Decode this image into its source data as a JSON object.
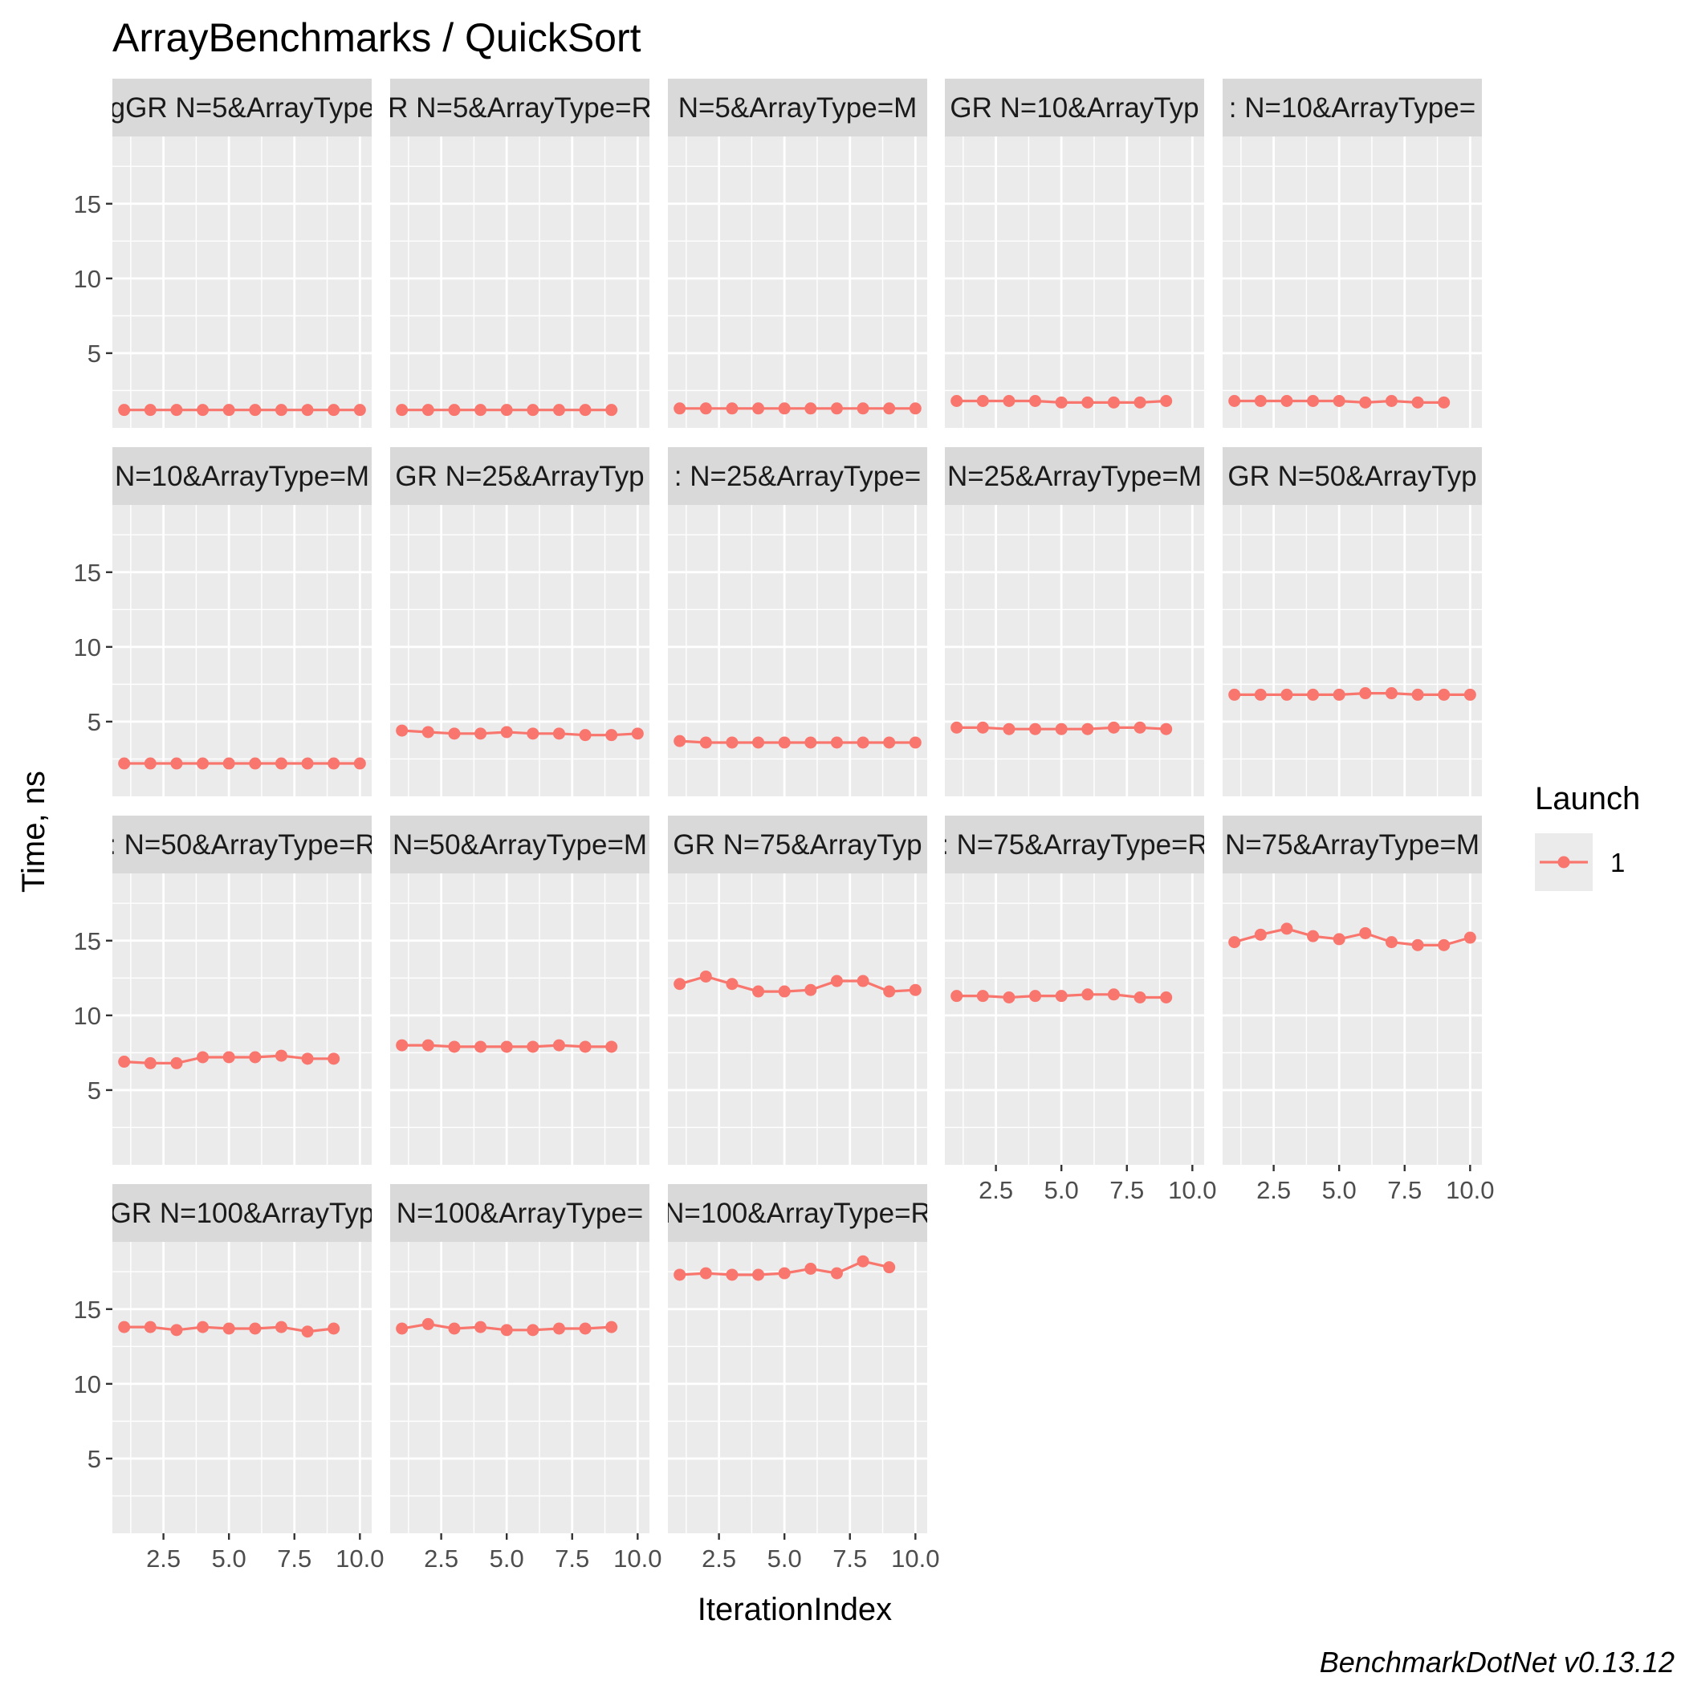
{
  "title": "ArrayBenchmarks / QuickSort",
  "caption": "BenchmarkDotNet v0.13.12",
  "legend": {
    "title": "Launch",
    "entries": [
      "1"
    ]
  },
  "colors": {
    "series": "#F8766D",
    "panel_bg": "#EBEBEB",
    "strip_bg": "#D9D9D9",
    "grid": "#FFFFFF"
  },
  "chart_data": {
    "type": "line",
    "title": "ArrayBenchmarks / QuickSort",
    "xlabel": "IterationIndex",
    "ylabel": "Time, ns",
    "xlim": [
      0.55,
      10.45
    ],
    "ylim": [
      0,
      19.5
    ],
    "x_ticks": [
      2.5,
      5.0,
      7.5,
      10.0
    ],
    "x_tick_labels": [
      "2.5",
      "5.0",
      "7.5",
      "10.0"
    ],
    "y_ticks": [
      5,
      10,
      15
    ],
    "y_tick_labels": [
      "5",
      "10",
      "15"
    ],
    "grid": true,
    "legend_position": "right",
    "series_name": "1",
    "facets": [
      {
        "strip": "GR N=5&ArrayType=",
        "shown_strip": "gGR N=5&ArrayType",
        "x": [
          1,
          2,
          3,
          4,
          5,
          6,
          7,
          8,
          9,
          10
        ],
        "y": [
          1.2,
          1.2,
          1.2,
          1.2,
          1.2,
          1.2,
          1.2,
          1.2,
          1.2,
          1.2
        ]
      },
      {
        "strip": "R N=5&ArrayType=R",
        "shown_strip": "R N=5&ArrayType=R",
        "x": [
          1,
          2,
          3,
          4,
          5,
          6,
          7,
          8,
          9
        ],
        "y": [
          1.2,
          1.2,
          1.2,
          1.2,
          1.2,
          1.2,
          1.2,
          1.2,
          1.2
        ]
      },
      {
        "strip": "N=5&ArrayType=M",
        "shown_strip": "N=5&ArrayType=M",
        "x": [
          1,
          2,
          3,
          4,
          5,
          6,
          7,
          8,
          9,
          10
        ],
        "y": [
          1.3,
          1.3,
          1.3,
          1.3,
          1.3,
          1.3,
          1.3,
          1.3,
          1.3,
          1.3
        ]
      },
      {
        "strip": "GR N=10&ArrayTyp",
        "shown_strip": "GR N=10&ArrayTyp",
        "x": [
          1,
          2,
          3,
          4,
          5,
          6,
          7,
          8,
          9
        ],
        "y": [
          1.8,
          1.8,
          1.8,
          1.8,
          1.7,
          1.7,
          1.7,
          1.7,
          1.8
        ]
      },
      {
        "strip": "N=10&ArrayType=",
        "shown_strip": ": N=10&ArrayType=",
        "x": [
          1,
          2,
          3,
          4,
          5,
          6,
          7,
          8,
          9
        ],
        "y": [
          1.8,
          1.8,
          1.8,
          1.8,
          1.8,
          1.7,
          1.8,
          1.7,
          1.7
        ]
      },
      {
        "strip": "N=10&ArrayType=M",
        "shown_strip": "N=10&ArrayType=M",
        "x": [
          1,
          2,
          3,
          4,
          5,
          6,
          7,
          8,
          9,
          10
        ],
        "y": [
          2.2,
          2.2,
          2.2,
          2.2,
          2.2,
          2.2,
          2.2,
          2.2,
          2.2,
          2.2
        ]
      },
      {
        "strip": "GR N=25&ArrayTyp",
        "shown_strip": "GR N=25&ArrayTyp",
        "x": [
          1,
          2,
          3,
          4,
          5,
          6,
          7,
          8,
          9,
          10
        ],
        "y": [
          4.4,
          4.3,
          4.2,
          4.2,
          4.3,
          4.2,
          4.2,
          4.1,
          4.1,
          4.2
        ]
      },
      {
        "strip": "N=25&ArrayType=",
        "shown_strip": ": N=25&ArrayType=",
        "x": [
          1,
          2,
          3,
          4,
          5,
          6,
          7,
          8,
          9,
          10
        ],
        "y": [
          3.7,
          3.6,
          3.6,
          3.6,
          3.6,
          3.6,
          3.6,
          3.6,
          3.6,
          3.6
        ]
      },
      {
        "strip": "N=25&ArrayType=M",
        "shown_strip": "N=25&ArrayType=M",
        "x": [
          1,
          2,
          3,
          4,
          5,
          6,
          7,
          8,
          9
        ],
        "y": [
          4.6,
          4.6,
          4.5,
          4.5,
          4.5,
          4.5,
          4.6,
          4.6,
          4.5
        ]
      },
      {
        "strip": "GR N=50&ArrayTyp",
        "shown_strip": "GR N=50&ArrayTyp",
        "x": [
          1,
          2,
          3,
          4,
          5,
          6,
          7,
          8,
          9,
          10
        ],
        "y": [
          6.8,
          6.8,
          6.8,
          6.8,
          6.8,
          6.9,
          6.9,
          6.8,
          6.8,
          6.8
        ]
      },
      {
        "strip": "N=50&ArrayType=R",
        "shown_strip": ": N=50&ArrayType=R",
        "x": [
          1,
          2,
          3,
          4,
          5,
          6,
          7,
          8,
          9
        ],
        "y": [
          6.9,
          6.8,
          6.8,
          7.2,
          7.2,
          7.2,
          7.3,
          7.1,
          7.1
        ]
      },
      {
        "strip": "N=50&ArrayType=M",
        "shown_strip": "N=50&ArrayType=M",
        "x": [
          1,
          2,
          3,
          4,
          5,
          6,
          7,
          8,
          9
        ],
        "y": [
          8.0,
          8.0,
          7.9,
          7.9,
          7.9,
          7.9,
          8.0,
          7.9,
          7.9
        ]
      },
      {
        "strip": "GR N=75&ArrayTyp",
        "shown_strip": "GR N=75&ArrayTyp",
        "x": [
          1,
          2,
          3,
          4,
          5,
          6,
          7,
          8,
          9,
          10
        ],
        "y": [
          12.1,
          12.6,
          12.1,
          11.6,
          11.6,
          11.7,
          12.3,
          12.3,
          11.6,
          11.7
        ]
      },
      {
        "strip": "N=75&ArrayType=R",
        "shown_strip": ": N=75&ArrayType=R",
        "x": [
          1,
          2,
          3,
          4,
          5,
          6,
          7,
          8,
          9
        ],
        "y": [
          11.3,
          11.3,
          11.2,
          11.3,
          11.3,
          11.4,
          11.4,
          11.2,
          11.2
        ]
      },
      {
        "strip": "N=75&ArrayType=M",
        "shown_strip": "N=75&ArrayType=M",
        "x": [
          1,
          2,
          3,
          4,
          5,
          6,
          7,
          8,
          9,
          10
        ],
        "y": [
          14.9,
          15.4,
          15.8,
          15.3,
          15.1,
          15.5,
          14.9,
          14.7,
          14.7,
          15.2
        ]
      },
      {
        "strip": "GR N=100&ArrayTyp",
        "shown_strip": "GR N=100&ArrayTyp",
        "x": [
          1,
          2,
          3,
          4,
          5,
          6,
          7,
          8,
          9
        ],
        "y": [
          13.8,
          13.8,
          13.6,
          13.8,
          13.7,
          13.7,
          13.8,
          13.5,
          13.7
        ]
      },
      {
        "strip": "N=100&ArrayType=",
        "shown_strip": "N=100&ArrayType=",
        "x": [
          1,
          2,
          3,
          4,
          5,
          6,
          7,
          8,
          9
        ],
        "y": [
          13.7,
          14.0,
          13.7,
          13.8,
          13.6,
          13.6,
          13.7,
          13.7,
          13.8
        ]
      },
      {
        "strip": "N=100&ArrayType=R",
        "shown_strip": "N=100&ArrayType=R",
        "x": [
          1,
          2,
          3,
          4,
          5,
          6,
          7,
          8,
          9
        ],
        "y": [
          17.3,
          17.4,
          17.3,
          17.3,
          17.4,
          17.7,
          17.4,
          18.2,
          17.8
        ]
      }
    ]
  }
}
